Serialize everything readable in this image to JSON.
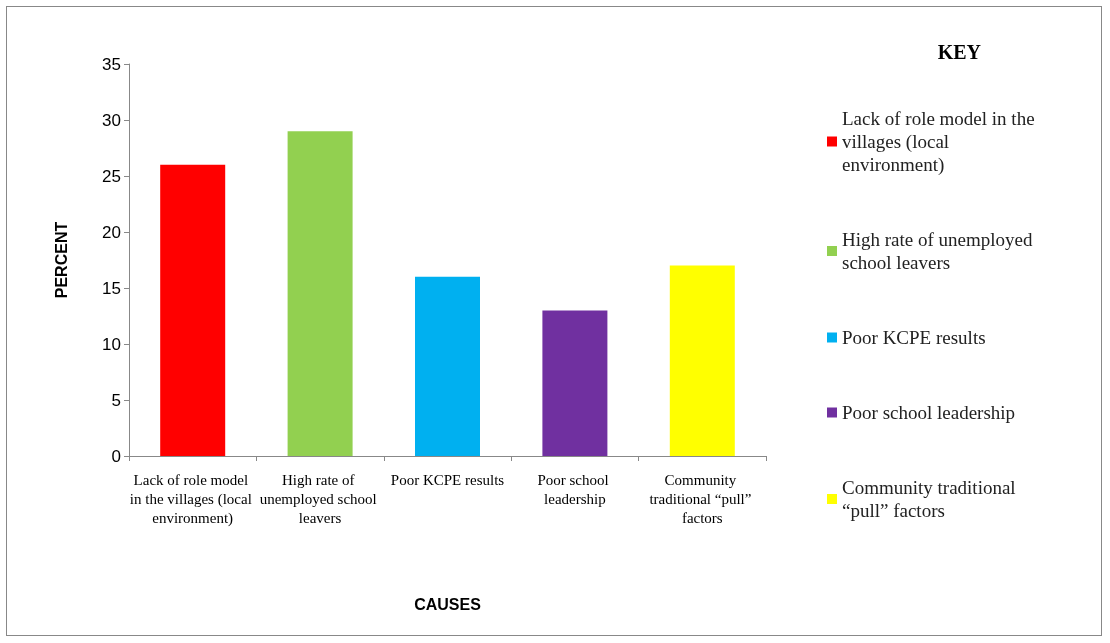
{
  "chart_data": {
    "type": "bar",
    "xlabel": "CAUSES",
    "ylabel": "PERCENT",
    "legend_title": "KEY",
    "stacked": true,
    "categories": [
      "Lack of role model in the villages (local environment)",
      "High rate of unemployed school leavers",
      "Poor KCPE results",
      "Poor school leadership",
      "Community traditional “pull” factors"
    ],
    "series": [
      {
        "name": "Lack of role model in the villages (local environment)",
        "color": "#ff0000",
        "values": [
          26,
          null,
          null,
          null,
          null
        ]
      },
      {
        "name": "High rate of unemployed school leavers",
        "color": "#92d050",
        "values": [
          null,
          29,
          null,
          null,
          null
        ]
      },
      {
        "name": "Poor KCPE results",
        "color": "#00b0f0",
        "values": [
          null,
          null,
          16,
          null,
          null
        ]
      },
      {
        "name": "Poor school leadership",
        "color": "#7030a0",
        "values": [
          null,
          null,
          null,
          13,
          null
        ]
      },
      {
        "name": "Community traditional “pull” factors",
        "color": "#ffff00",
        "values": [
          null,
          null,
          null,
          null,
          17
        ]
      }
    ],
    "ylim": [
      0,
      35
    ],
    "yticks": [
      0,
      5,
      10,
      15,
      20,
      25,
      30,
      35
    ],
    "grid": false,
    "legend": "right"
  }
}
